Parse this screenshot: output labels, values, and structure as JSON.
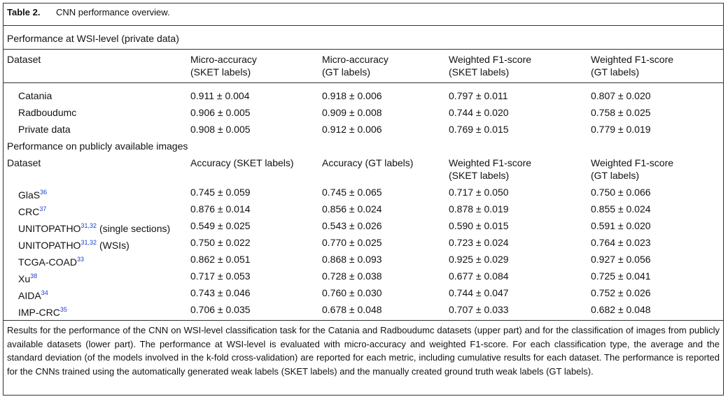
{
  "caption": {
    "label": "Table 2.",
    "text": "CNN performance overview."
  },
  "sections": [
    {
      "title": "Performance at WSI-level (private data)",
      "header": [
        [
          "Dataset"
        ],
        [
          "Micro-accuracy",
          "(SKET labels)"
        ],
        [
          "Micro-accuracy",
          "(GT labels)"
        ],
        [
          "Weighted F1-score",
          "(SKET labels)"
        ],
        [
          "Weighted F1-score",
          "(GT labels)"
        ]
      ],
      "rows": [
        {
          "name": "Catania",
          "values": [
            "0.911 ± 0.004",
            "0.918 ± 0.006",
            "0.797 ± 0.011",
            "0.807 ± 0.020"
          ]
        },
        {
          "name": "Radboudumc",
          "values": [
            "0.906 ± 0.005",
            "0.909 ± 0.008",
            "0.744 ± 0.020",
            "0.758 ± 0.025"
          ]
        },
        {
          "name": "Private data",
          "values": [
            "0.908 ± 0.005",
            "0.912 ± 0.006",
            "0.769 ± 0.015",
            "0.779 ± 0.019"
          ]
        }
      ]
    },
    {
      "title": "Performance on publicly available images",
      "header": [
        [
          "Dataset"
        ],
        [
          "Accuracy (SKET labels)"
        ],
        [
          "Accuracy (GT labels)"
        ],
        [
          "Weighted F1-score",
          "(SKET labels)"
        ],
        [
          "Weighted F1-score",
          "(GT labels)"
        ]
      ],
      "rows": [
        {
          "name": "GlaS",
          "ref": "36",
          "values": [
            "0.745 ± 0.059",
            "0.745 ± 0.065",
            "0.717 ± 0.050",
            "0.750 ± 0.066"
          ]
        },
        {
          "name": "CRC",
          "ref": "37",
          "values": [
            "0.876 ± 0.014",
            "0.856 ± 0.024",
            "0.878 ± 0.019",
            "0.855 ± 0.024"
          ]
        },
        {
          "name": "UNITOPATHO",
          "ref": "31,32",
          "suffix": "(single sections)",
          "values": [
            "0.549 ± 0.025",
            "0.543 ± 0.026",
            "0.590 ± 0.015",
            "0.591 ± 0.020"
          ]
        },
        {
          "name": "UNITOPATHO",
          "ref": "31,32",
          "suffix": "(WSIs)",
          "values": [
            "0.750 ± 0.022",
            "0.770 ± 0.025",
            "0.723 ± 0.024",
            "0.764 ± 0.023"
          ]
        },
        {
          "name": "TCGA-COAD",
          "ref": "33",
          "values": [
            "0.862 ± 0.051",
            "0.868 ± 0.093",
            "0.925 ± 0.029",
            "0.927 ± 0.056"
          ]
        },
        {
          "name": "Xu",
          "ref": "38",
          "values": [
            "0.717 ± 0.053",
            "0.728 ± 0.038",
            "0.677 ± 0.084",
            "0.725 ± 0.041"
          ]
        },
        {
          "name": "AIDA",
          "ref": "34",
          "values": [
            "0.743 ± 0.046",
            "0.760 ± 0.030",
            "0.744 ± 0.047",
            "0.752 ± 0.026"
          ]
        },
        {
          "name": "IMP-CRC",
          "ref": "35",
          "values": [
            "0.706 ± 0.035",
            "0.678 ± 0.048",
            "0.707 ± 0.033",
            "0.682 ± 0.048"
          ]
        }
      ]
    }
  ],
  "footnote": "Results for the performance of the CNN on WSI-level classification task for the Catania and Radboudumc datasets (upper part) and for the classification of images from publicly available datasets (lower part). The performance at WSI-level is evaluated with micro-accuracy and weighted F1-score. For each classification type, the average and the standard deviation (of the models involved in the k-fold cross-validation) are reported for each metric, including cumulative results for each dataset. The performance is reported for the CNNs trained using the automatically generated weak labels (SKET labels) and the manually created ground truth weak labels (GT labels)."
}
